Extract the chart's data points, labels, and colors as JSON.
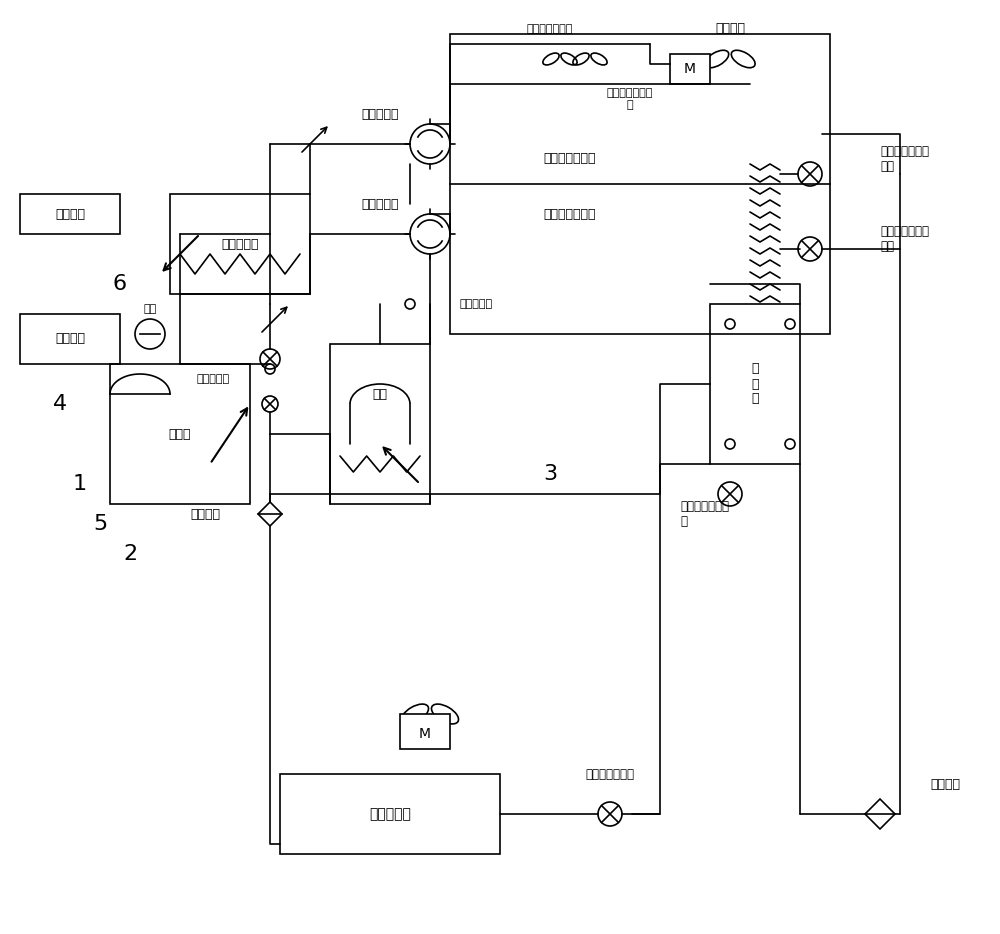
{
  "bg_color": "#ffffff",
  "line_color": "#000000",
  "line_width": 1.2,
  "font_size": 9,
  "labels": {
    "outdoor_fan": "室外风机",
    "wind_sensor": "自然风速测速仪",
    "insulation": "低温极限隔热帆\n布",
    "first_outdoor_hx": "第一室外换热器",
    "second_outdoor_hx": "第二室外换热器",
    "first_4way": "第一四通阀",
    "second_4way": "第二四通阀",
    "water_hx": "水冷换热器",
    "water_pump": "水泵",
    "expansion_tank": "膨胀水箱",
    "water_system": "接水系统",
    "high_pressure": "高压传感器",
    "low_pressure": "低压传感器",
    "compressor": "压缩机",
    "gas_separator": "气分",
    "economizer": "经\n济\n器",
    "valve2": "第二阀门",
    "subcooler_ev": "过冷器电子膨胀\n阀",
    "indoor_hx": "室内换热器",
    "indoor_ev": "内机电子膨胀阀",
    "valve1": "第一阀门",
    "first_heat_ev": "第一制热电子膨\n胀阀",
    "second_heat_ev": "第二制热电子膨\n胀阀",
    "label1": "1",
    "label2": "2",
    "label3": "3",
    "label4": "4",
    "label5": "5",
    "label6": "6",
    "M_label": "M"
  }
}
